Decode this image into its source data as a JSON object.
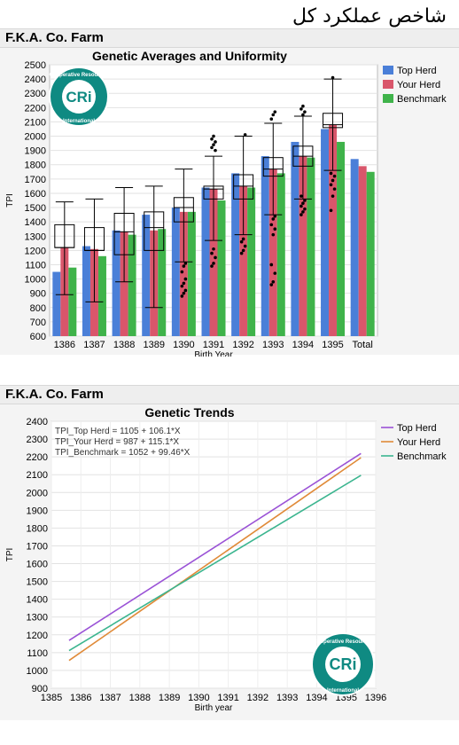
{
  "page_header": "شاخص عملکرد کل",
  "panel1": {
    "farm_label": "F.K.A. Co. Farm"
  },
  "panel2": {
    "farm_label": "F.K.A. Co. Farm"
  },
  "logo": {
    "text_top": "Cooperative Resources",
    "text_bottom": "International",
    "mark": "CRi"
  },
  "colors": {
    "top_herd": "#4a7fd8",
    "your_herd": "#d9566b",
    "benchmark": "#3fb34a",
    "line_top": "#9a52d6",
    "line_your": "#e08a38",
    "line_bench": "#3bb58f",
    "logo_teal": "#0f8a82"
  },
  "chart_data": [
    {
      "type": "bar",
      "title": "Genetic Averages and Uniformity",
      "xlabel": "Birth Year",
      "ylabel": "TPI",
      "ylim": [
        600,
        2500
      ],
      "yticks": [
        600,
        700,
        800,
        900,
        1000,
        1100,
        1200,
        1300,
        1400,
        1500,
        1600,
        1700,
        1800,
        1900,
        2000,
        2100,
        2200,
        2300,
        2400,
        2500
      ],
      "categories": [
        "1386",
        "1387",
        "1388",
        "1389",
        "1390",
        "1391",
        "1392",
        "1393",
        "1394",
        "1395",
        "Total"
      ],
      "series": [
        {
          "name": "Top Herd",
          "values": [
            1050,
            1230,
            1340,
            1450,
            1500,
            1640,
            1740,
            1860,
            1960,
            2050,
            1840
          ]
        },
        {
          "name": "Your Herd",
          "values": [
            1220,
            1210,
            1330,
            1340,
            1470,
            1630,
            1650,
            1770,
            1860,
            2080,
            1790
          ]
        },
        {
          "name": "Benchmark",
          "values": [
            1080,
            1160,
            1310,
            1350,
            1470,
            1550,
            1640,
            1740,
            1850,
            1960,
            1750
          ]
        }
      ],
      "boxplots": [
        {
          "category": "1386",
          "min": 890,
          "q1": 1220,
          "median": 1220,
          "q3": 1380,
          "max": 1540
        },
        {
          "category": "1387",
          "min": 840,
          "q1": 1200,
          "median": 1200,
          "q3": 1360,
          "max": 1560
        },
        {
          "category": "1388",
          "min": 980,
          "q1": 1170,
          "median": 1330,
          "q3": 1460,
          "max": 1640
        },
        {
          "category": "1389",
          "min": 800,
          "q1": 1200,
          "median": 1360,
          "q3": 1470,
          "max": 1650
        },
        {
          "category": "1390",
          "min": 1120,
          "q1": 1400,
          "median": 1500,
          "q3": 1570,
          "max": 1770
        },
        {
          "category": "1391",
          "min": 1270,
          "q1": 1560,
          "median": 1630,
          "q3": 1650,
          "max": 1860
        },
        {
          "category": "1392",
          "min": 1310,
          "q1": 1560,
          "median": 1650,
          "q3": 1730,
          "max": 2000
        },
        {
          "category": "1393",
          "min": 1450,
          "q1": 1720,
          "median": 1770,
          "q3": 1850,
          "max": 2090
        },
        {
          "category": "1394",
          "min": 1560,
          "q1": 1790,
          "median": 1860,
          "q3": 1930,
          "max": 2140
        },
        {
          "category": "1395",
          "min": 1760,
          "q1": 2060,
          "median": 2080,
          "q3": 2160,
          "max": 2400
        }
      ],
      "outliers": [
        {
          "category": "1390",
          "values": [
            880,
            900,
            920,
            950,
            970,
            1000,
            1050,
            1090,
            1110
          ]
        },
        {
          "category": "1391",
          "values": [
            1090,
            1110,
            1150,
            1180,
            1210,
            1900,
            1920,
            1940,
            1960,
            1980,
            2000
          ]
        },
        {
          "category": "1392",
          "values": [
            1180,
            1200,
            1230,
            1260,
            1280,
            2010
          ]
        },
        {
          "category": "1393",
          "values": [
            960,
            980,
            1040,
            1100,
            1310,
            1350,
            1380,
            1420,
            1440,
            2120,
            2150,
            2170
          ]
        },
        {
          "category": "1394",
          "values": [
            1450,
            1470,
            1490,
            1510,
            1530,
            1550,
            1580,
            2150,
            2170,
            2190,
            2210
          ]
        },
        {
          "category": "1395",
          "values": [
            1480,
            1580,
            1630,
            1660,
            1690,
            1720,
            1740,
            2410
          ]
        }
      ],
      "legend": "right"
    },
    {
      "type": "line",
      "title": "Genetic Trends",
      "xlabel": "Birth year",
      "ylabel": "TPI",
      "xlim": [
        1385,
        1396
      ],
      "xticks": [
        1385,
        1386,
        1387,
        1388,
        1389,
        1390,
        1391,
        1392,
        1393,
        1394,
        1395,
        1396
      ],
      "ylim": [
        900,
        2400
      ],
      "yticks": [
        900,
        1000,
        1100,
        1200,
        1300,
        1400,
        1500,
        1600,
        1700,
        1800,
        1900,
        2000,
        2100,
        2200,
        2300,
        2400
      ],
      "series": [
        {
          "name": "Top Herd",
          "intercept": 1105,
          "slope": 106.1,
          "x": [
            1385.6,
            1395.5
          ],
          "equation": "TPI_Top Herd = 1105 + 106.1*X"
        },
        {
          "name": "Your Herd",
          "intercept": 987,
          "slope": 115.1,
          "x": [
            1385.6,
            1395.5
          ],
          "equation": "TPI_Your Herd = 987 + 115.1*X"
        },
        {
          "name": "Benchmark",
          "intercept": 1052,
          "slope": 99.46,
          "x": [
            1385.6,
            1395.5
          ],
          "equation": "TPI_Benchmark = 1052 + 99.46*X"
        }
      ],
      "legend": "right"
    }
  ]
}
